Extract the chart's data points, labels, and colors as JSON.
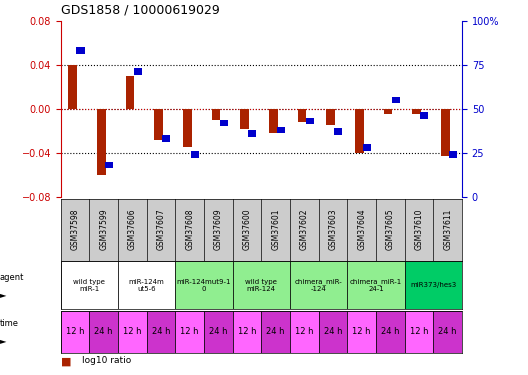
{
  "title": "GDS1858 / 10000619029",
  "samples": [
    "GSM37598",
    "GSM37599",
    "GSM37606",
    "GSM37607",
    "GSM37608",
    "GSM37609",
    "GSM37600",
    "GSM37601",
    "GSM37602",
    "GSM37603",
    "GSM37604",
    "GSM37605",
    "GSM37610",
    "GSM37611"
  ],
  "log10_ratio": [
    0.04,
    -0.06,
    0.03,
    -0.028,
    -0.035,
    -0.01,
    -0.018,
    -0.022,
    -0.012,
    -0.015,
    -0.04,
    -0.005,
    -0.005,
    -0.043
  ],
  "percentile_rank": [
    83,
    18,
    71,
    33,
    24,
    42,
    36,
    38,
    43,
    37,
    28,
    55,
    46,
    24
  ],
  "ylim_left": [
    -0.08,
    0.08
  ],
  "ylim_right": [
    0,
    100
  ],
  "yticks_left": [
    -0.08,
    -0.04,
    0.0,
    0.04,
    0.08
  ],
  "yticks_right": [
    0,
    25,
    50,
    75,
    100
  ],
  "agent_groups": [
    {
      "label": "wild type\nmiR-1",
      "cols": [
        0,
        1
      ],
      "color": "#ffffff"
    },
    {
      "label": "miR-124m\nut5-6",
      "cols": [
        2,
        3
      ],
      "color": "#ffffff"
    },
    {
      "label": "miR-124mut9-1\n0",
      "cols": [
        4,
        5
      ],
      "color": "#90ee90"
    },
    {
      "label": "wild type\nmiR-124",
      "cols": [
        6,
        7
      ],
      "color": "#90ee90"
    },
    {
      "label": "chimera_miR-\n-124",
      "cols": [
        8,
        9
      ],
      "color": "#90ee90"
    },
    {
      "label": "chimera_miR-1\n24-1",
      "cols": [
        10,
        11
      ],
      "color": "#90ee90"
    },
    {
      "label": "miR373/hes3",
      "cols": [
        12,
        13
      ],
      "color": "#00cc66"
    }
  ],
  "time_labels": [
    "12 h",
    "24 h",
    "12 h",
    "24 h",
    "12 h",
    "24 h",
    "12 h",
    "24 h",
    "12 h",
    "24 h",
    "12 h",
    "24 h",
    "12 h",
    "24 h"
  ],
  "bar_color": "#aa2200",
  "dot_color": "#0000cc",
  "background_color": "#ffffff",
  "left_axis_color": "#cc0000",
  "right_axis_color": "#0000cc",
  "sample_bg_color": "#cccccc",
  "pink_light": "#ff66ff",
  "pink_dark": "#cc33cc",
  "green_light": "#90ee90",
  "green_bright": "#00cc44"
}
